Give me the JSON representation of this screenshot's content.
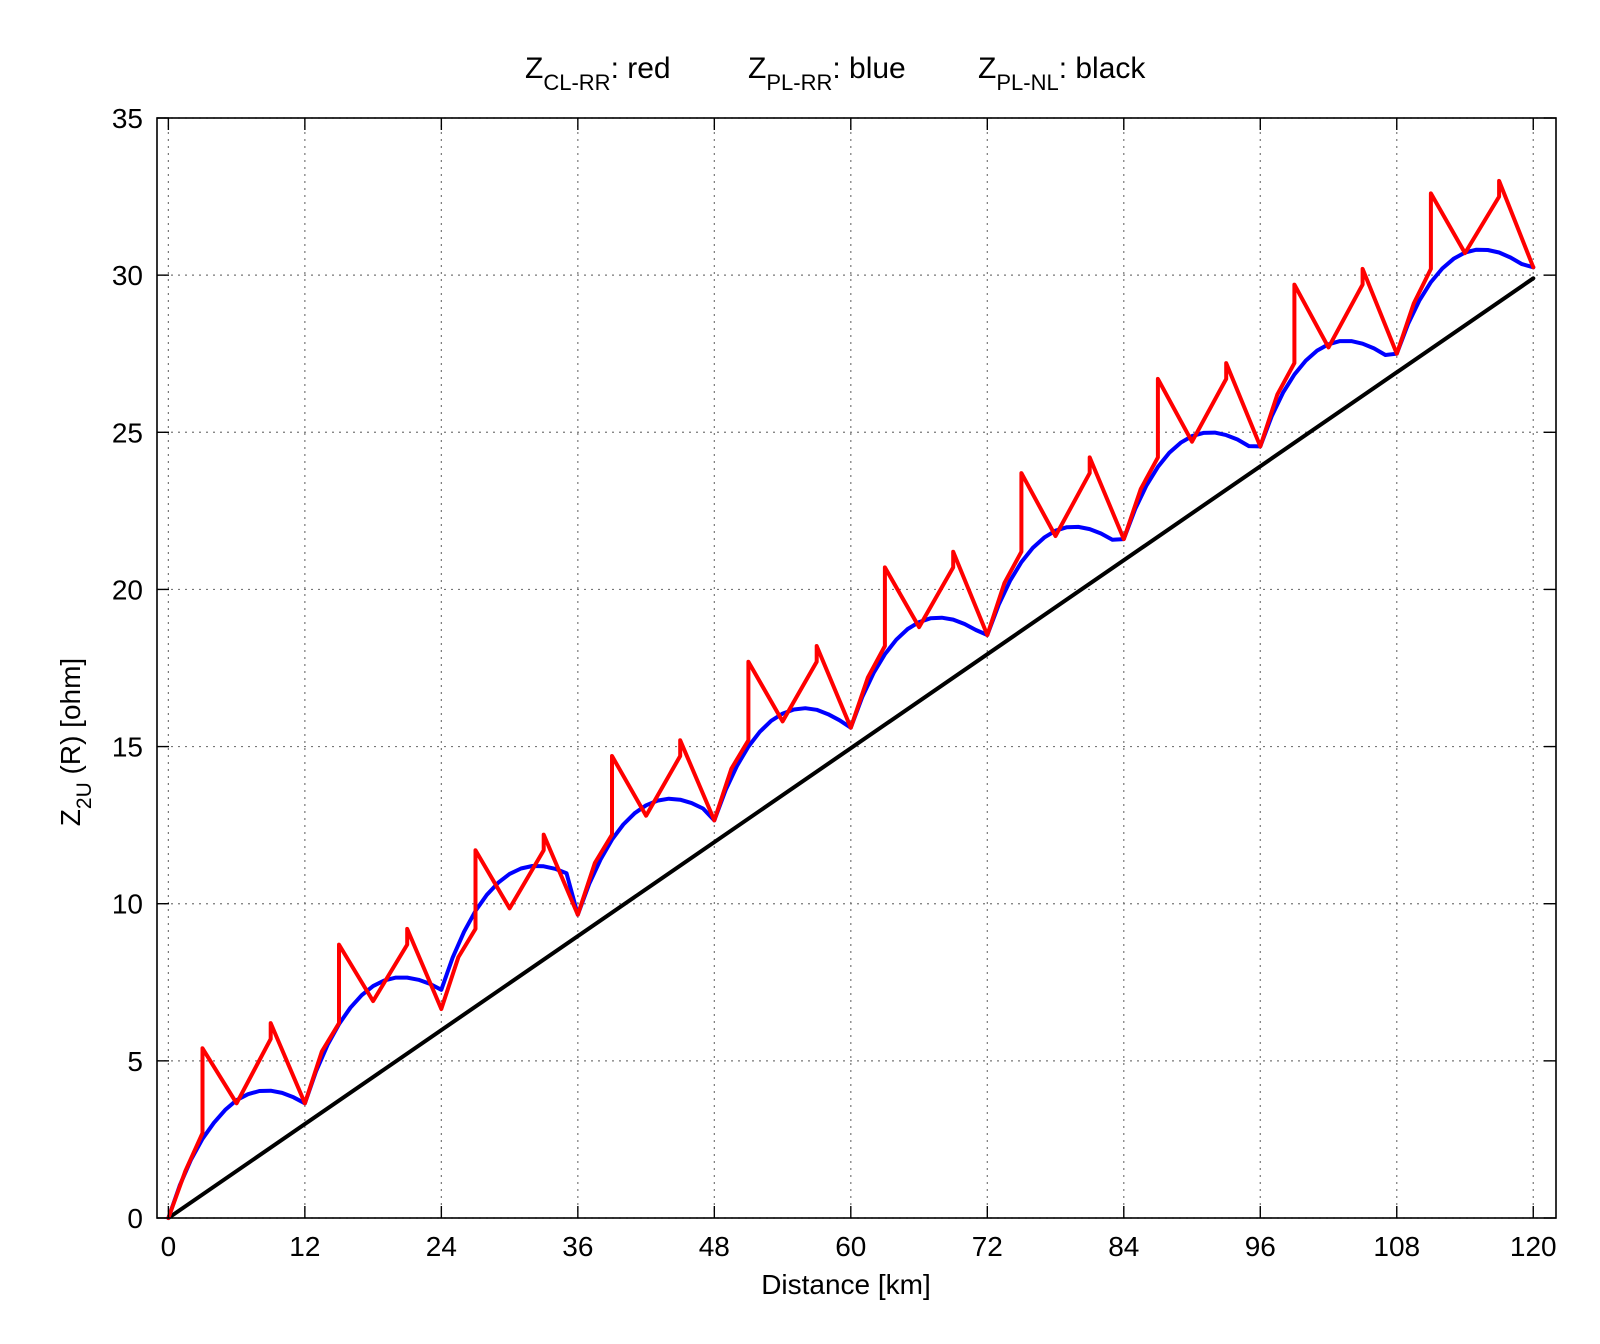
{
  "chart_data": {
    "type": "line",
    "title": {
      "entries": [
        {
          "symbol": "Z",
          "subscript": "CL-RR",
          "suffix": ": red"
        },
        {
          "symbol": "Z",
          "subscript": "PL-RR",
          "suffix": ": blue"
        },
        {
          "symbol": "Z",
          "subscript": "PL-NL",
          "suffix": ": black"
        }
      ]
    },
    "xlabel": "Distance [km]",
    "ylabel": {
      "symbol": "Z",
      "subscript": "2U",
      "suffix": " (R) [ohm]"
    },
    "xlim": [
      -1,
      122
    ],
    "ylim": [
      0,
      35
    ],
    "xticks": [
      0,
      12,
      24,
      36,
      48,
      60,
      72,
      84,
      96,
      108,
      120
    ],
    "yticks": [
      0,
      5,
      10,
      15,
      20,
      25,
      30,
      35
    ],
    "grid": true,
    "series": [
      {
        "name": "Z_PL-NL",
        "color": "#000000",
        "x": [
          0,
          120
        ],
        "y": [
          0,
          29.9
        ]
      },
      {
        "name": "Z_PL-RR",
        "color": "#0000ff",
        "x": [
          0,
          1,
          2,
          3,
          4,
          5,
          6,
          7,
          8,
          9,
          10,
          11,
          12,
          13,
          14,
          15,
          16,
          17,
          18,
          19,
          20,
          21,
          22,
          23,
          24,
          25,
          26,
          27,
          28,
          29,
          30,
          31,
          32,
          33,
          34,
          35,
          36,
          37,
          38,
          39,
          40,
          41,
          42,
          43,
          44,
          45,
          46,
          47,
          48,
          49,
          50,
          51,
          52,
          53,
          54,
          55,
          56,
          57,
          58,
          59,
          60,
          61,
          62,
          63,
          64,
          65,
          66,
          67,
          68,
          69,
          70,
          71,
          72,
          73,
          74,
          75,
          76,
          77,
          78,
          79,
          80,
          81,
          82,
          83,
          84,
          85,
          86,
          87,
          88,
          89,
          90,
          91,
          92,
          93,
          94,
          95,
          96,
          97,
          98,
          99,
          100,
          101,
          102,
          103,
          104,
          105,
          106,
          107,
          108,
          109,
          110,
          111,
          112,
          113,
          114,
          115,
          116,
          117,
          118,
          119,
          120
        ],
        "y": [
          0.0,
          1.03,
          1.86,
          2.52,
          3.03,
          3.44,
          3.75,
          3.94,
          4.04,
          4.05,
          3.98,
          3.84,
          3.65,
          4.68,
          5.51,
          6.17,
          6.69,
          7.09,
          7.38,
          7.56,
          7.65,
          7.65,
          7.58,
          7.45,
          7.26,
          8.29,
          9.11,
          9.77,
          10.28,
          10.67,
          10.95,
          11.12,
          11.2,
          11.19,
          11.11,
          10.97,
          9.65,
          10.63,
          11.41,
          12.04,
          12.52,
          12.88,
          13.13,
          13.28,
          13.34,
          13.31,
          13.2,
          13.03,
          12.65,
          13.62,
          14.39,
          15.0,
          15.47,
          15.82,
          16.05,
          16.18,
          16.22,
          16.17,
          16.03,
          15.84,
          15.6,
          16.57,
          17.34,
          17.94,
          18.4,
          18.74,
          18.96,
          19.08,
          19.1,
          19.04,
          18.9,
          18.71,
          18.55,
          19.51,
          20.27,
          20.87,
          21.32,
          21.65,
          21.87,
          21.98,
          21.99,
          21.92,
          21.78,
          21.58,
          21.6,
          22.56,
          23.31,
          23.9,
          24.35,
          24.67,
          24.88,
          24.98,
          24.99,
          24.91,
          24.77,
          24.56,
          24.55,
          25.51,
          26.26,
          26.84,
          27.28,
          27.6,
          27.8,
          27.9,
          27.9,
          27.82,
          27.67,
          27.46,
          27.5,
          28.45,
          29.2,
          29.78,
          30.21,
          30.52,
          30.72,
          30.81,
          30.8,
          30.72,
          30.56,
          30.35,
          30.25
        ]
      },
      {
        "name": "Z_CL-RR",
        "color": "#ff0000",
        "x": [
          0,
          1.5,
          3,
          3,
          6,
          9,
          9,
          12,
          13.5,
          15,
          15,
          18,
          21,
          21,
          24,
          25.5,
          27,
          27,
          30,
          33,
          33,
          36,
          37.5,
          39,
          39,
          42,
          45,
          45,
          48,
          49.5,
          51,
          51,
          54,
          57,
          57,
          60,
          61.5,
          63,
          63,
          66,
          69,
          69,
          72,
          73.5,
          75,
          75,
          78,
          81,
          81,
          84,
          85.5,
          87,
          87,
          90,
          93,
          93,
          96,
          97.5,
          99,
          99,
          102,
          105,
          105,
          108,
          109.5,
          111,
          111,
          114,
          117,
          117,
          120
        ],
        "y": [
          0.0,
          1.5,
          2.7,
          5.4,
          3.65,
          5.7,
          6.2,
          3.65,
          5.3,
          6.2,
          8.7,
          6.9,
          8.7,
          9.2,
          6.65,
          8.3,
          9.2,
          11.7,
          9.85,
          11.7,
          12.2,
          9.65,
          11.3,
          12.2,
          14.7,
          12.8,
          14.7,
          15.2,
          12.65,
          14.3,
          15.2,
          17.7,
          15.8,
          17.7,
          18.2,
          15.6,
          17.2,
          18.2,
          20.7,
          18.8,
          20.7,
          21.2,
          18.55,
          20.2,
          21.2,
          23.7,
          21.7,
          23.7,
          24.2,
          21.6,
          23.2,
          24.2,
          26.7,
          24.7,
          26.7,
          27.2,
          24.55,
          26.2,
          27.2,
          29.7,
          27.7,
          29.7,
          30.2,
          27.5,
          29.1,
          30.2,
          32.6,
          30.7,
          32.5,
          33.0,
          30.25
        ]
      }
    ]
  }
}
